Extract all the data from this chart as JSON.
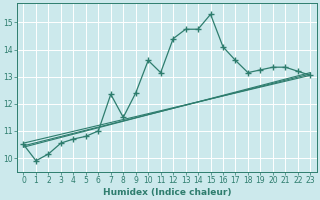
{
  "xlabel": "Humidex (Indice chaleur)",
  "bg_color": "#cce9ec",
  "grid_color": "#ffffff",
  "line_color": "#2e7d6e",
  "xlim": [
    -0.5,
    23.5
  ],
  "ylim": [
    9.5,
    15.7
  ],
  "xticks": [
    0,
    1,
    2,
    3,
    4,
    5,
    6,
    7,
    8,
    9,
    10,
    11,
    12,
    13,
    14,
    15,
    16,
    17,
    18,
    19,
    20,
    21,
    22,
    23
  ],
  "yticks": [
    10,
    11,
    12,
    13,
    14,
    15
  ],
  "main_x": [
    0,
    1,
    2,
    3,
    4,
    5,
    6,
    7,
    8,
    9,
    10,
    11,
    12,
    13,
    14,
    15,
    16,
    17,
    18,
    19,
    20,
    21,
    22,
    23
  ],
  "main_y": [
    10.5,
    9.9,
    10.15,
    10.55,
    10.7,
    10.8,
    11.0,
    12.35,
    11.5,
    12.4,
    13.6,
    13.15,
    14.4,
    14.75,
    14.75,
    15.3,
    14.1,
    13.6,
    13.15,
    13.25,
    13.35,
    13.35,
    13.2,
    13.05
  ],
  "trend1_x": [
    0,
    23
  ],
  "trend1_y": [
    10.55,
    13.05
  ],
  "trend2_x": [
    0,
    23
  ],
  "trend2_y": [
    10.45,
    13.1
  ],
  "trend3_x": [
    0,
    23
  ],
  "trend3_y": [
    10.4,
    13.15
  ]
}
